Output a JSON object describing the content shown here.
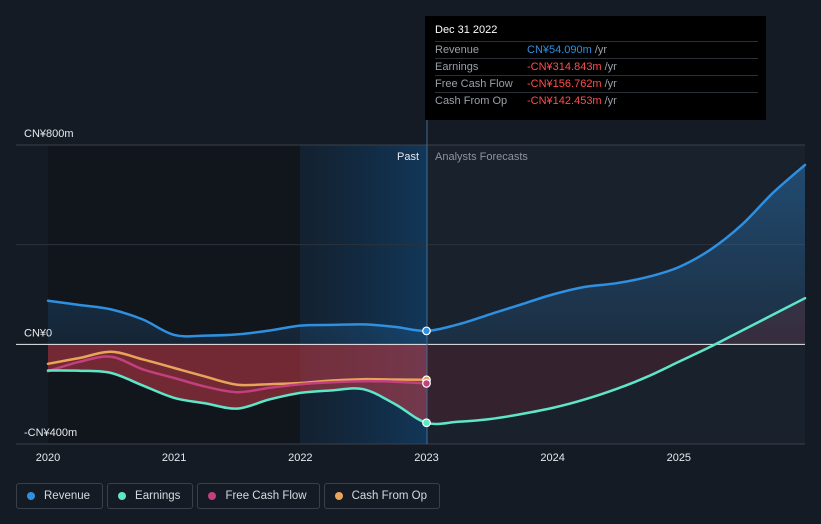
{
  "tooltip": {
    "date": "Dec 31 2022",
    "unit": "/yr",
    "rows": [
      {
        "label": "Revenue",
        "value": "CN¥54.090m",
        "color": "#2f8fe0"
      },
      {
        "label": "Earnings",
        "value": "-CN¥314.843m",
        "color": "#ff4d4d"
      },
      {
        "label": "Free Cash Flow",
        "value": "-CN¥156.762m",
        "color": "#ff4d4d"
      },
      {
        "label": "Cash From Op",
        "value": "-CN¥142.453m",
        "color": "#ff4d4d"
      }
    ]
  },
  "legend": [
    {
      "label": "Revenue",
      "color": "#2f8fe0"
    },
    {
      "label": "Earnings",
      "color": "#5ee6c9"
    },
    {
      "label": "Free Cash Flow",
      "color": "#c2407f"
    },
    {
      "label": "Cash From Op",
      "color": "#e8a45a"
    }
  ],
  "chart_data": {
    "type": "line",
    "title": "",
    "y_tick_labels": [
      "CN¥800m",
      "CN¥0",
      "-CN¥400m"
    ],
    "ylim": [
      -400,
      800
    ],
    "xlim": [
      2020,
      2026
    ],
    "x_tick_labels": [
      "2020",
      "2021",
      "2022",
      "2023",
      "2024",
      "2025"
    ],
    "x_ticks": [
      2020,
      2021,
      2022,
      2023,
      2024,
      2025
    ],
    "divider_x": 2023,
    "past_label": "Past",
    "forecast_label": "Analysts Forecasts",
    "series": [
      {
        "name": "Revenue",
        "color": "#2f8fe0",
        "x": [
          2020,
          2020.25,
          2020.5,
          2020.75,
          2021,
          2021.25,
          2021.5,
          2021.75,
          2022,
          2022.25,
          2022.5,
          2022.75,
          2023,
          2023.25,
          2023.5,
          2023.75,
          2024,
          2024.25,
          2024.5,
          2024.75,
          2025,
          2025.25,
          2025.5,
          2025.75,
          2026
        ],
        "values": [
          175,
          158,
          140,
          100,
          38,
          35,
          40,
          55,
          75,
          78,
          80,
          70,
          54,
          80,
          120,
          160,
          200,
          230,
          245,
          270,
          310,
          380,
          480,
          610,
          720
        ]
      },
      {
        "name": "Earnings",
        "color": "#5ee6c9",
        "x": [
          2020,
          2020.25,
          2020.5,
          2020.75,
          2021,
          2021.25,
          2021.5,
          2021.75,
          2022,
          2022.25,
          2022.5,
          2022.75,
          2023,
          2023.25,
          2023.5,
          2023.75,
          2024,
          2024.25,
          2024.5,
          2024.75,
          2025,
          2025.25,
          2025.5,
          2025.75,
          2026
        ],
        "values": [
          -105,
          -106,
          -115,
          -165,
          -215,
          -237,
          -258,
          -222,
          -195,
          -185,
          -180,
          -240,
          -314.843,
          -311,
          -300,
          -280,
          -255,
          -222,
          -180,
          -130,
          -70,
          -10,
          55,
          120,
          185
        ]
      },
      {
        "name": "Free Cash Flow",
        "color": "#c2407f",
        "x": [
          2020,
          2020.25,
          2020.5,
          2020.75,
          2021,
          2021.25,
          2021.5,
          2021.75,
          2022,
          2022.25,
          2022.5,
          2022.75,
          2023
        ],
        "values": [
          -108,
          -70,
          -50,
          -100,
          -135,
          -170,
          -192,
          -175,
          -160,
          -152,
          -148,
          -150,
          -156.762
        ]
      },
      {
        "name": "Cash From Op",
        "color": "#e8a45a",
        "x": [
          2020,
          2020.25,
          2020.5,
          2020.75,
          2021,
          2021.25,
          2021.5,
          2021.75,
          2022,
          2022.25,
          2022.5,
          2022.75,
          2023
        ],
        "values": [
          -78,
          -55,
          -30,
          -60,
          -95,
          -130,
          -162,
          -160,
          -155,
          -145,
          -140,
          -141,
          -142.453
        ]
      }
    ]
  }
}
